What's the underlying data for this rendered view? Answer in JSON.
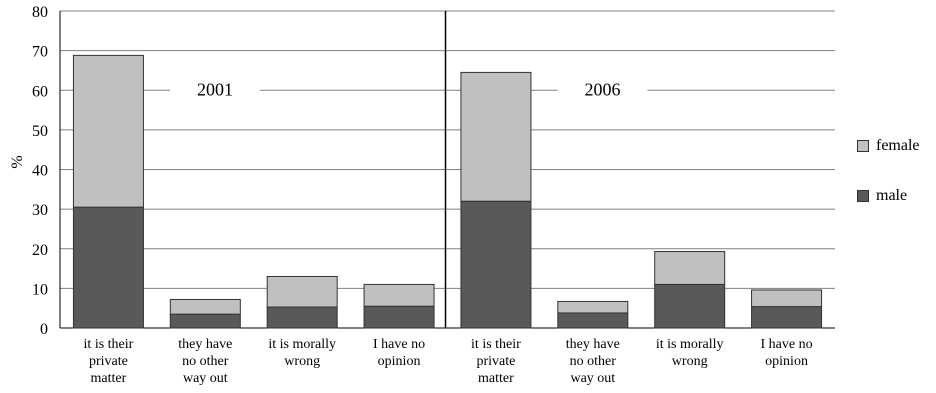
{
  "chart_data": {
    "type": "bar",
    "stacked": true,
    "ylabel": "%",
    "ylim": [
      0,
      80
    ],
    "yticks": [
      0,
      10,
      20,
      30,
      40,
      50,
      60,
      70,
      80
    ],
    "grid": true,
    "legend_position": "right",
    "groups": [
      {
        "label": "2001",
        "categories": [
          "it is their private matter",
          "they have no other way out",
          "it is morally wrong",
          "I have no opinion"
        ],
        "series": [
          {
            "name": "male",
            "values": [
              30.5,
              3.5,
              5.3,
              5.5
            ]
          },
          {
            "name": "female",
            "values": [
              38.3,
              3.7,
              7.7,
              5.5
            ]
          }
        ]
      },
      {
        "label": "2006",
        "categories": [
          "it is their private matter",
          "they have no other way out",
          "it is morally wrong",
          "I have no opinion"
        ],
        "series": [
          {
            "name": "male",
            "values": [
              32,
              3.8,
              11,
              5.4
            ]
          },
          {
            "name": "female",
            "values": [
              32.5,
              2.9,
              8.3,
              4.2
            ]
          }
        ]
      }
    ],
    "category_label_lines": [
      [
        "it is their",
        "private",
        "matter"
      ],
      [
        "they have",
        "no other",
        "way out"
      ],
      [
        "it is morally",
        "wrong"
      ],
      [
        "I have no",
        "opinion"
      ]
    ],
    "legend": [
      {
        "name": "female",
        "color": "#c0c0c0"
      },
      {
        "name": "male",
        "color": "#595959"
      }
    ],
    "colors": {
      "male": "#595959",
      "female": "#c0c0c0",
      "grid": "#808080",
      "bar_outline": "#333333"
    }
  }
}
